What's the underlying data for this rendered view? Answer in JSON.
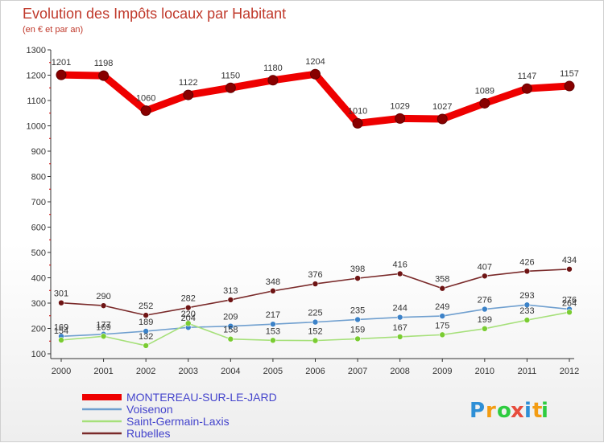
{
  "chart_data": {
    "type": "line",
    "title": "Evolution des Impôts locaux par Habitant",
    "subtitle": "(en € et par an)",
    "x": [
      "2000",
      "2001",
      "2002",
      "2003",
      "2004",
      "2005",
      "2006",
      "2007",
      "2008",
      "2009",
      "2010",
      "2011",
      "2012"
    ],
    "ylim": [
      100,
      1300
    ],
    "yticks": [
      100,
      200,
      300,
      400,
      500,
      600,
      700,
      800,
      900,
      1000,
      1100,
      1200,
      1300
    ],
    "grid": false,
    "legend_position": "bottom-left",
    "series": [
      {
        "name": "MONTEREAU-SUR-LE-JARD",
        "color": "#ee0000",
        "marker": "#880000",
        "values": [
          1201,
          1198,
          1060,
          1122,
          1150,
          1180,
          1204,
          1010,
          1029,
          1027,
          1089,
          1147,
          1157
        ]
      },
      {
        "name": "Voisenon",
        "color": "#6f9fcf",
        "marker": "#3c82c8",
        "values": [
          169,
          177,
          189,
          204,
          209,
          217,
          225,
          235,
          244,
          249,
          276,
          293,
          276
        ]
      },
      {
        "name": "Saint-Germain-Laxis",
        "color": "#a6e07a",
        "marker": "#7acc32",
        "values": [
          154,
          169,
          132,
          220,
          158,
          153,
          152,
          159,
          167,
          175,
          199,
          233,
          264
        ]
      },
      {
        "name": "Rubelles",
        "color": "#7a2a2a",
        "marker": "#6e1414",
        "values": [
          301,
          290,
          252,
          282,
          313,
          348,
          376,
          398,
          416,
          358,
          407,
          426,
          434
        ]
      }
    ]
  },
  "logo": {
    "text": "Proxiti",
    "letters": [
      {
        "ch": "P",
        "color": "#2e8fd6"
      },
      {
        "ch": "r",
        "color": "#f39c12"
      },
      {
        "ch": "o",
        "color": "#2ecc40"
      },
      {
        "ch": "x",
        "color": "#e74c3c"
      },
      {
        "ch": "i",
        "color": "#2e8fd6"
      },
      {
        "ch": "t",
        "color": "#f39c12"
      },
      {
        "ch": "i",
        "color": "#2ecc40"
      }
    ]
  }
}
